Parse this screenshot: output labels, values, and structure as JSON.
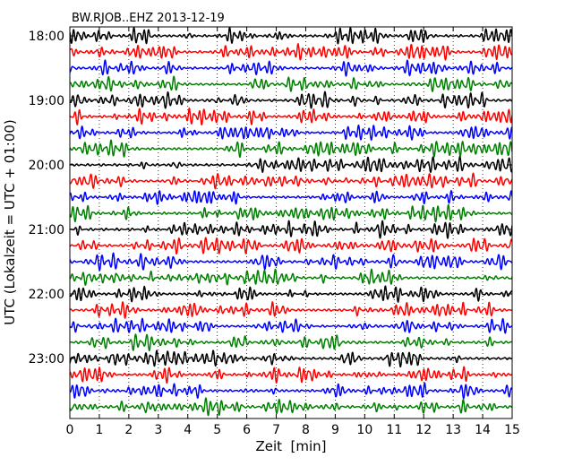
{
  "chart_data": {
    "type": "line",
    "title": "BW.RJOB..EHZ 2013-12-19",
    "xlabel": "Zeit  [min]",
    "ylabel": "UTC (Lokalzeit = UTC + 01:00)",
    "xlim": [
      0,
      15
    ],
    "x_ticks": [
      0,
      1,
      2,
      3,
      4,
      5,
      6,
      7,
      8,
      9,
      10,
      11,
      12,
      13,
      14,
      15
    ],
    "y_tick_labels": [
      "18:00",
      "19:00",
      "20:00",
      "21:00",
      "22:00",
      "23:00"
    ],
    "grid": true,
    "series_colors": [
      "#000000",
      "#ff0000",
      "#0000ff",
      "#008000"
    ],
    "traces": [
      {
        "start": "18:00",
        "amplitude": 1.0
      },
      {
        "start": "18:15",
        "amplitude": 1.0
      },
      {
        "start": "18:30",
        "amplitude": 0.95
      },
      {
        "start": "18:45",
        "amplitude": 0.9
      },
      {
        "start": "19:00",
        "amplitude": 1.0
      },
      {
        "start": "19:15",
        "amplitude": 1.0
      },
      {
        "start": "19:30",
        "amplitude": 0.9
      },
      {
        "start": "19:45",
        "amplitude": 1.0
      },
      {
        "start": "20:00",
        "amplitude": 1.0
      },
      {
        "start": "20:15",
        "amplitude": 0.95
      },
      {
        "start": "20:30",
        "amplitude": 0.9
      },
      {
        "start": "20:45",
        "amplitude": 1.0
      },
      {
        "start": "21:00",
        "amplitude": 1.1
      },
      {
        "start": "21:15",
        "amplitude": 1.0
      },
      {
        "start": "21:30",
        "amplitude": 1.0
      },
      {
        "start": "21:45",
        "amplitude": 1.0
      },
      {
        "start": "22:00",
        "amplitude": 0.95
      },
      {
        "start": "22:15",
        "amplitude": 1.0
      },
      {
        "start": "22:30",
        "amplitude": 0.9
      },
      {
        "start": "22:45",
        "amplitude": 1.0
      },
      {
        "start": "23:00",
        "amplitude": 1.0
      },
      {
        "start": "23:15",
        "amplitude": 1.0
      },
      {
        "start": "23:30",
        "amplitude": 1.0
      },
      {
        "start": "23:45",
        "amplitude": 1.1
      }
    ]
  }
}
